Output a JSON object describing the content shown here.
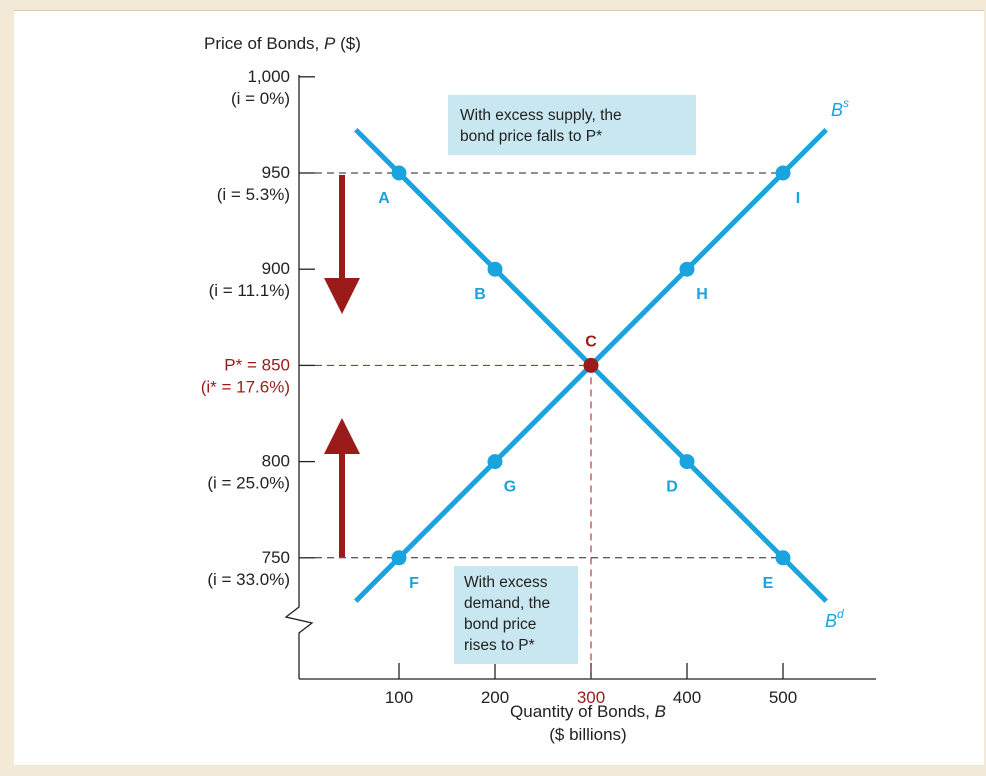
{
  "chart_data": {
    "type": "line",
    "y_title": "Price of Bonds, P ($)",
    "x_title_line1": "Quantity of Bonds, B",
    "x_title_line2": "($ billions)",
    "x_ticks": [
      100,
      200,
      300,
      400,
      500
    ],
    "x_tick_labels": [
      "100",
      "200",
      "300",
      "400",
      "500"
    ],
    "y_ticks": [
      {
        "value": 1000,
        "label": "1,000",
        "sublabel": "(i = 0%)"
      },
      {
        "value": 950,
        "label": "950",
        "sublabel": "(i = 5.3%)"
      },
      {
        "value": 900,
        "label": "900",
        "sublabel": "(i = 11.1%)"
      },
      {
        "value": 850,
        "label": "P* = 850",
        "sublabel": "(i* = 17.6%)",
        "highlight": true
      },
      {
        "value": 800,
        "label": "800",
        "sublabel": "(i = 25.0%)"
      },
      {
        "value": 750,
        "label": "750",
        "sublabel": "(i = 33.0%)"
      }
    ],
    "series": [
      {
        "name": "Bd",
        "color": "#1ba3dd",
        "points": [
          {
            "x": 100,
            "y": 950,
            "label": "A"
          },
          {
            "x": 200,
            "y": 900,
            "label": "B"
          },
          {
            "x": 300,
            "y": 850,
            "label": "C"
          },
          {
            "x": 400,
            "y": 800,
            "label": "D"
          },
          {
            "x": 500,
            "y": 750,
            "label": "E"
          }
        ]
      },
      {
        "name": "Bs",
        "color": "#1ba3dd",
        "points": [
          {
            "x": 100,
            "y": 750,
            "label": "F"
          },
          {
            "x": 200,
            "y": 800,
            "label": "G"
          },
          {
            "x": 300,
            "y": 850,
            "label": "C"
          },
          {
            "x": 400,
            "y": 900,
            "label": "H"
          },
          {
            "x": 500,
            "y": 950,
            "label": "I"
          }
        ]
      }
    ],
    "curve_labels": {
      "supply_base": "B",
      "supply_sup": "s",
      "demand_base": "B",
      "demand_sup": "d"
    },
    "equilibrium": {
      "x": 300,
      "y": 850,
      "label": "C",
      "color": "#9b1b1b"
    },
    "point_labels": [
      "A",
      "B",
      "C",
      "D",
      "E",
      "F",
      "G",
      "H",
      "I"
    ],
    "annotations": {
      "excess_supply": [
        "With excess supply, the",
        "bond price falls to P*"
      ],
      "excess_demand": [
        "With excess",
        "demand, the",
        "bond price",
        "rises to P*"
      ]
    },
    "colors": {
      "curve": "#1ba3dd",
      "equilibrium": "#9b1b1b",
      "callout_bg": "#c9e7f0",
      "axis": "#222222"
    }
  }
}
